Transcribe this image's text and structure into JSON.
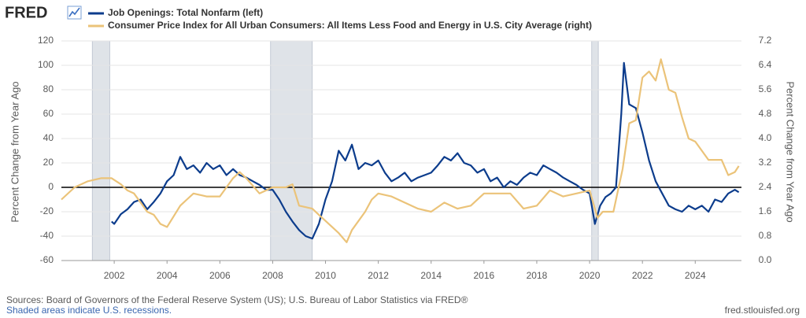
{
  "chart_data": {
    "type": "line",
    "logo": "FRED",
    "y_label": "Percent Change from Year Ago",
    "y2_label": "Percent Change from Year Ago",
    "source": "Sources: Board of Governors of the Federal Reserve System (US); U.S. Bureau of Labor Statistics via FRED®",
    "note": "Shaded areas indicate U.S. recessions.",
    "site": "fred.stlouisfed.org",
    "xlim": [
      2000,
      2025.75
    ],
    "xticks": [
      2002,
      2004,
      2006,
      2008,
      2010,
      2012,
      2014,
      2016,
      2018,
      2020,
      2022,
      2024
    ],
    "ylim": [
      -60,
      120
    ],
    "yticks": [
      -60,
      -40,
      -20,
      0,
      20,
      40,
      60,
      80,
      100,
      120
    ],
    "y2lim": [
      0,
      7.2
    ],
    "y2ticks": [
      {
        "value": 0,
        "label": "0.0"
      },
      0.8,
      1.6,
      2.4,
      3.2,
      {
        "value": 4,
        "label": "4.0"
      },
      4.8,
      5.6,
      6.4,
      7.2
    ],
    "grid": true,
    "legend": "top-left",
    "recessions": [
      [
        2001.17,
        2001.83
      ],
      [
        2007.92,
        2009.5
      ],
      [
        2020.08,
        2020.33
      ]
    ],
    "recession_color": "#dfe3e8",
    "series": [
      {
        "name": "Job Openings: Total Nonfarm (left)",
        "color": "#0c3c8c",
        "axis": "y",
        "x": [
          2001.9,
          2002.0,
          2002.25,
          2002.5,
          2002.75,
          2003.0,
          2003.25,
          2003.5,
          2003.75,
          2004.0,
          2004.25,
          2004.5,
          2004.75,
          2005.0,
          2005.25,
          2005.5,
          2005.75,
          2006.0,
          2006.25,
          2006.5,
          2006.75,
          2007.0,
          2007.25,
          2007.5,
          2007.75,
          2008.0,
          2008.25,
          2008.5,
          2008.75,
          2009.0,
          2009.25,
          2009.5,
          2009.75,
          2010.0,
          2010.25,
          2010.5,
          2010.75,
          2011.0,
          2011.25,
          2011.5,
          2011.75,
          2012.0,
          2012.25,
          2012.5,
          2012.75,
          2013.0,
          2013.25,
          2013.5,
          2013.75,
          2014.0,
          2014.25,
          2014.5,
          2014.75,
          2015.0,
          2015.25,
          2015.5,
          2015.75,
          2016.0,
          2016.25,
          2016.5,
          2016.75,
          2017.0,
          2017.25,
          2017.5,
          2017.75,
          2018.0,
          2018.25,
          2018.5,
          2018.75,
          2019.0,
          2019.25,
          2019.5,
          2019.75,
          2020.0,
          2020.2,
          2020.4,
          2020.6,
          2020.8,
          2021.0,
          2021.2,
          2021.3,
          2021.5,
          2021.75,
          2022.0,
          2022.25,
          2022.5,
          2022.75,
          2023.0,
          2023.25,
          2023.5,
          2023.75,
          2024.0,
          2024.25,
          2024.5,
          2024.75,
          2025.0,
          2025.25,
          2025.5,
          2025.65
        ],
        "values": [
          -28,
          -30,
          -22,
          -18,
          -12,
          -10,
          -18,
          -12,
          -5,
          5,
          10,
          25,
          15,
          18,
          12,
          20,
          15,
          18,
          10,
          15,
          10,
          8,
          5,
          2,
          -2,
          -2,
          -10,
          -20,
          -28,
          -35,
          -40,
          -42,
          -30,
          -10,
          5,
          30,
          22,
          35,
          15,
          20,
          18,
          22,
          12,
          5,
          8,
          12,
          5,
          8,
          10,
          12,
          18,
          25,
          22,
          28,
          20,
          18,
          12,
          15,
          5,
          8,
          0,
          5,
          2,
          8,
          12,
          10,
          18,
          15,
          12,
          8,
          5,
          2,
          -2,
          -5,
          -30,
          -15,
          -8,
          -5,
          0,
          60,
          102,
          68,
          65,
          45,
          22,
          5,
          -5,
          -15,
          -18,
          -20,
          -15,
          -18,
          -15,
          -20,
          -10,
          -12,
          -5,
          -2,
          -4
        ]
      },
      {
        "name": "Consumer Price Index for All Urban Consumers: All Items Less Food and Energy in U.S. City Average (right)",
        "color": "#ebc379",
        "axis": "y2",
        "x": [
          2000.0,
          2000.5,
          2001.0,
          2001.5,
          2001.9,
          2002.25,
          2002.5,
          2002.75,
          2003.0,
          2003.25,
          2003.5,
          2003.75,
          2004.0,
          2004.5,
          2004.75,
          2005.0,
          2005.5,
          2006.0,
          2006.5,
          2006.75,
          2007.0,
          2007.5,
          2008.0,
          2008.5,
          2008.75,
          2009.0,
          2009.5,
          2009.75,
          2010.0,
          2010.5,
          2010.8,
          2011.0,
          2011.5,
          2011.75,
          2012.0,
          2012.5,
          2013.0,
          2013.5,
          2014.0,
          2014.5,
          2015.0,
          2015.5,
          2016.0,
          2016.5,
          2017.0,
          2017.5,
          2018.0,
          2018.5,
          2019.0,
          2019.5,
          2020.0,
          2020.3,
          2020.5,
          2020.9,
          2021.25,
          2021.5,
          2021.75,
          2022.0,
          2022.25,
          2022.5,
          2022.7,
          2023.0,
          2023.25,
          2023.5,
          2023.75,
          2024.0,
          2024.5,
          2024.75,
          2025.0,
          2025.25,
          2025.5,
          2025.65
        ],
        "values": [
          2.0,
          2.4,
          2.6,
          2.7,
          2.7,
          2.5,
          2.3,
          2.2,
          1.9,
          1.6,
          1.5,
          1.2,
          1.1,
          1.8,
          2.0,
          2.2,
          2.1,
          2.1,
          2.7,
          2.9,
          2.7,
          2.2,
          2.4,
          2.4,
          2.5,
          1.8,
          1.7,
          1.5,
          1.3,
          0.9,
          0.6,
          1.0,
          1.6,
          2.0,
          2.2,
          2.1,
          1.9,
          1.7,
          1.6,
          1.9,
          1.7,
          1.8,
          2.2,
          2.2,
          2.2,
          1.7,
          1.8,
          2.3,
          2.1,
          2.2,
          2.3,
          1.4,
          1.6,
          1.6,
          3.0,
          4.5,
          4.6,
          6.0,
          6.2,
          5.9,
          6.6,
          5.6,
          5.5,
          4.7,
          4.0,
          3.9,
          3.3,
          3.3,
          3.3,
          2.8,
          2.9,
          3.1
        ]
      }
    ]
  }
}
